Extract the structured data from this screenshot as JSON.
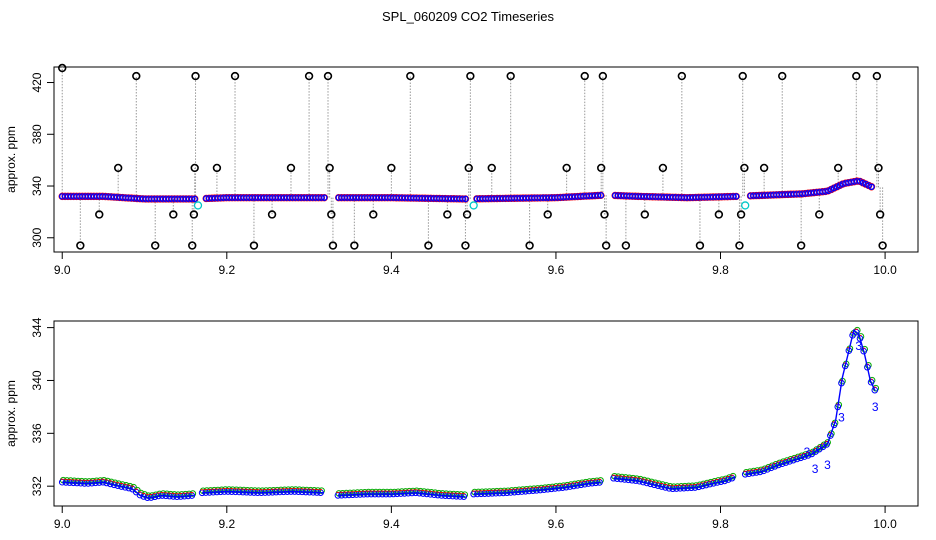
{
  "title": "SPL_060209  CO2 Timeseries",
  "chart_data": [
    {
      "type": "scatter",
      "ylabel": "approx. ppm",
      "xlim": [
        8.99,
        10.04
      ],
      "ylim": [
        289,
        432
      ],
      "xticks": [
        "9.0",
        "9.2",
        "9.4",
        "9.6",
        "9.8",
        "10.0"
      ],
      "yticks": [
        "300",
        "340",
        "380",
        "420"
      ],
      "colors": {
        "main": "#0000ff",
        "ring": "#ff0000",
        "alt": "#00c8c8",
        "spike": "#000000",
        "drop": "#999999"
      },
      "main_series": [
        {
          "x": 9.0,
          "y": 332
        },
        {
          "x": 9.05,
          "y": 332
        },
        {
          "x": 9.1,
          "y": 330
        },
        {
          "x": 9.16,
          "y": 330
        },
        {
          "x": 9.2,
          "y": 331
        },
        {
          "x": 9.3,
          "y": 331
        },
        {
          "x": 9.33,
          "y": 331
        },
        {
          "x": 9.4,
          "y": 331
        },
        {
          "x": 9.49,
          "y": 330
        },
        {
          "x": 9.6,
          "y": 331
        },
        {
          "x": 9.66,
          "y": 333
        },
        {
          "x": 9.7,
          "y": 332
        },
        {
          "x": 9.76,
          "y": 331
        },
        {
          "x": 9.82,
          "y": 332
        },
        {
          "x": 9.86,
          "y": 333
        },
        {
          "x": 9.9,
          "y": 334
        },
        {
          "x": 9.93,
          "y": 336
        },
        {
          "x": 9.95,
          "y": 342
        },
        {
          "x": 9.968,
          "y": 344
        },
        {
          "x": 9.985,
          "y": 339
        }
      ],
      "gaps": [
        [
          9.162,
          9.172
        ],
        [
          9.32,
          9.335
        ],
        [
          9.493,
          9.503
        ],
        [
          9.658,
          9.672
        ],
        [
          9.822,
          9.834
        ]
      ],
      "cyan_points": [
        {
          "x": 9.165,
          "y": 325
        },
        {
          "x": 9.5,
          "y": 325
        },
        {
          "x": 9.83,
          "y": 325
        }
      ],
      "spikes": [
        {
          "x": 9.0,
          "y": 432
        },
        {
          "x": 9.022,
          "y": 294
        },
        {
          "x": 9.045,
          "y": 318
        },
        {
          "x": 9.068,
          "y": 354
        },
        {
          "x": 9.09,
          "y": 425
        },
        {
          "x": 9.113,
          "y": 294
        },
        {
          "x": 9.135,
          "y": 318
        },
        {
          "x": 9.158,
          "y": 294
        },
        {
          "x": 9.16,
          "y": 318
        },
        {
          "x": 9.161,
          "y": 354
        },
        {
          "x": 9.162,
          "y": 425
        },
        {
          "x": 9.188,
          "y": 354
        },
        {
          "x": 9.21,
          "y": 425
        },
        {
          "x": 9.233,
          "y": 294
        },
        {
          "x": 9.255,
          "y": 318
        },
        {
          "x": 9.278,
          "y": 354
        },
        {
          "x": 9.3,
          "y": 425
        },
        {
          "x": 9.323,
          "y": 425
        },
        {
          "x": 9.325,
          "y": 354
        },
        {
          "x": 9.327,
          "y": 318
        },
        {
          "x": 9.329,
          "y": 294
        },
        {
          "x": 9.355,
          "y": 294
        },
        {
          "x": 9.378,
          "y": 318
        },
        {
          "x": 9.4,
          "y": 354
        },
        {
          "x": 9.423,
          "y": 425
        },
        {
          "x": 9.445,
          "y": 294
        },
        {
          "x": 9.468,
          "y": 318
        },
        {
          "x": 9.49,
          "y": 294
        },
        {
          "x": 9.492,
          "y": 318
        },
        {
          "x": 9.494,
          "y": 354
        },
        {
          "x": 9.496,
          "y": 425
        },
        {
          "x": 9.522,
          "y": 354
        },
        {
          "x": 9.545,
          "y": 425
        },
        {
          "x": 9.568,
          "y": 294
        },
        {
          "x": 9.59,
          "y": 318
        },
        {
          "x": 9.613,
          "y": 354
        },
        {
          "x": 9.635,
          "y": 425
        },
        {
          "x": 9.655,
          "y": 354
        },
        {
          "x": 9.657,
          "y": 425
        },
        {
          "x": 9.659,
          "y": 318
        },
        {
          "x": 9.661,
          "y": 294
        },
        {
          "x": 9.685,
          "y": 294
        },
        {
          "x": 9.708,
          "y": 318
        },
        {
          "x": 9.73,
          "y": 354
        },
        {
          "x": 9.753,
          "y": 425
        },
        {
          "x": 9.775,
          "y": 294
        },
        {
          "x": 9.798,
          "y": 318
        },
        {
          "x": 9.823,
          "y": 294
        },
        {
          "x": 9.825,
          "y": 318
        },
        {
          "x": 9.827,
          "y": 425
        },
        {
          "x": 9.829,
          "y": 354
        },
        {
          "x": 9.853,
          "y": 354
        },
        {
          "x": 9.875,
          "y": 425
        },
        {
          "x": 9.898,
          "y": 294
        },
        {
          "x": 9.92,
          "y": 318
        },
        {
          "x": 9.943,
          "y": 354
        },
        {
          "x": 9.965,
          "y": 425
        },
        {
          "x": 9.99,
          "y": 425
        },
        {
          "x": 9.992,
          "y": 354
        },
        {
          "x": 9.994,
          "y": 318
        },
        {
          "x": 9.997,
          "y": 294
        }
      ]
    },
    {
      "type": "line",
      "ylabel": "approx. ppm",
      "xlim": [
        8.99,
        10.04
      ],
      "ylim": [
        330.5,
        344.5
      ],
      "xticks": [
        "9.0",
        "9.2",
        "9.4",
        "9.6",
        "9.8",
        "10.0"
      ],
      "yticks": [
        "332",
        "336",
        "340",
        "344"
      ],
      "colors": {
        "line": "#0000ff",
        "alt": "#00aa00",
        "marker": "#ff0000",
        "label": "#800080"
      },
      "segment_breaks": [
        9.162,
        9.32,
        9.493,
        9.658,
        9.822
      ],
      "series": [
        {
          "x": 9.0,
          "y": 332.3
        },
        {
          "x": 9.03,
          "y": 332.2
        },
        {
          "x": 9.05,
          "y": 332.3
        },
        {
          "x": 9.07,
          "y": 332.0
        },
        {
          "x": 9.085,
          "y": 331.8
        },
        {
          "x": 9.095,
          "y": 331.3
        },
        {
          "x": 9.105,
          "y": 331.1
        },
        {
          "x": 9.12,
          "y": 331.3
        },
        {
          "x": 9.14,
          "y": 331.2
        },
        {
          "x": 9.16,
          "y": 331.3
        },
        {
          "x": 9.17,
          "y": 331.5
        },
        {
          "x": 9.2,
          "y": 331.6
        },
        {
          "x": 9.24,
          "y": 331.5
        },
        {
          "x": 9.28,
          "y": 331.6
        },
        {
          "x": 9.318,
          "y": 331.5
        },
        {
          "x": 9.335,
          "y": 331.3
        },
        {
          "x": 9.37,
          "y": 331.4
        },
        {
          "x": 9.4,
          "y": 331.4
        },
        {
          "x": 9.43,
          "y": 331.5
        },
        {
          "x": 9.46,
          "y": 331.3
        },
        {
          "x": 9.49,
          "y": 331.2
        },
        {
          "x": 9.5,
          "y": 331.4
        },
        {
          "x": 9.54,
          "y": 331.5
        },
        {
          "x": 9.58,
          "y": 331.7
        },
        {
          "x": 9.61,
          "y": 331.9
        },
        {
          "x": 9.64,
          "y": 332.2
        },
        {
          "x": 9.655,
          "y": 332.3
        },
        {
          "x": 9.67,
          "y": 332.6
        },
        {
          "x": 9.7,
          "y": 332.4
        },
        {
          "x": 9.72,
          "y": 332.1
        },
        {
          "x": 9.74,
          "y": 331.8
        },
        {
          "x": 9.77,
          "y": 331.9
        },
        {
          "x": 9.79,
          "y": 332.2
        },
        {
          "x": 9.805,
          "y": 332.4
        },
        {
          "x": 9.818,
          "y": 332.7
        },
        {
          "x": 9.83,
          "y": 332.9
        },
        {
          "x": 9.85,
          "y": 333.1
        },
        {
          "x": 9.87,
          "y": 333.6
        },
        {
          "x": 9.89,
          "y": 334.0
        },
        {
          "x": 9.91,
          "y": 334.4
        },
        {
          "x": 9.93,
          "y": 335.2
        },
        {
          "x": 9.94,
          "y": 337.0
        },
        {
          "x": 9.948,
          "y": 340.2
        },
        {
          "x": 9.955,
          "y": 342.0
        },
        {
          "x": 9.962,
          "y": 343.8
        },
        {
          "x": 9.968,
          "y": 343.5
        },
        {
          "x": 9.975,
          "y": 342.0
        },
        {
          "x": 9.982,
          "y": 340.0
        },
        {
          "x": 9.988,
          "y": 339.2
        }
      ],
      "labels": [
        {
          "text": "3",
          "x": 9.915,
          "y": 333.3
        },
        {
          "x": 9.93,
          "text": "3",
          "y": 333.6
        },
        {
          "text": "3",
          "x": 9.947,
          "y": 337.2
        },
        {
          "text": "3",
          "x": 9.968,
          "y": 342.6
        },
        {
          "text": "3",
          "x": 9.988,
          "y": 338.0
        },
        {
          "text": "3",
          "x": 9.905,
          "y": 334.6
        }
      ]
    }
  ]
}
